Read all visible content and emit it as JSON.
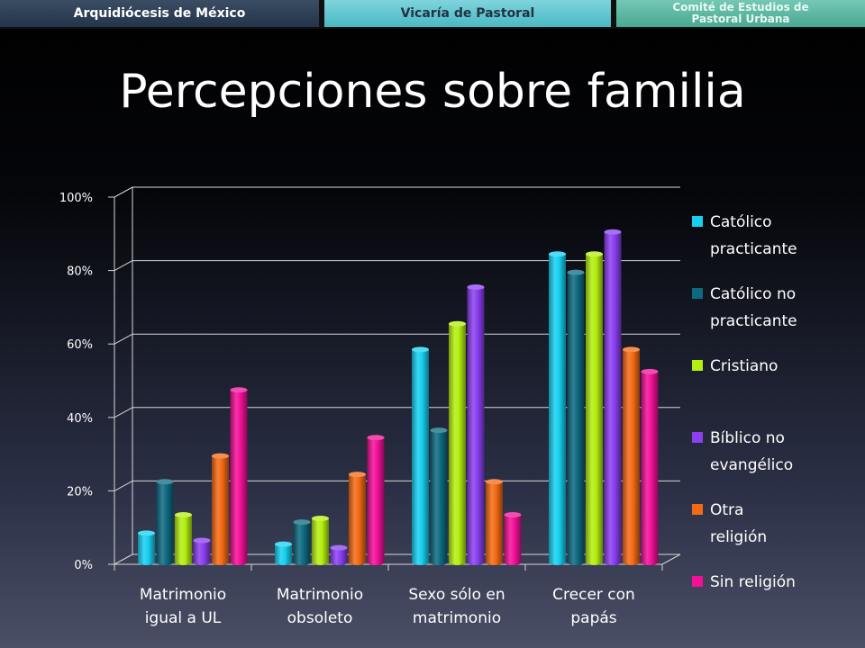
{
  "header": {
    "tab1": "Arquidiócesis de México",
    "tab2": "Vicaría de Pastoral",
    "tab3_line1": "Comité de Estudios de",
    "tab3_line2": "Pastoral Urbana"
  },
  "slide": {
    "title": "Percepciones sobre familia"
  },
  "chart_data": {
    "type": "bar",
    "categories": [
      [
        "Matrimonio",
        "igual a UL"
      ],
      [
        "Matrimonio",
        "obsoleto"
      ],
      [
        "Sexo sólo en",
        "matrimonio"
      ],
      [
        "Crecer con",
        "papás"
      ]
    ],
    "y_ticks": [
      "0%",
      "20%",
      "40%",
      "60%",
      "80%",
      "100%"
    ],
    "ylim": [
      0,
      100
    ],
    "grid": true,
    "legend_position": "right",
    "series": [
      {
        "name": "Católico practicante",
        "legend_lines": [
          "Católico",
          "practicante"
        ],
        "color": "#17d0f0",
        "values": [
          8,
          5,
          58,
          84
        ]
      },
      {
        "name": "Católico no practicante",
        "legend_lines": [
          "Católico no",
          "practicante"
        ],
        "color": "#0e6a80",
        "values": [
          22,
          11,
          36,
          79
        ]
      },
      {
        "name": "Cristiano",
        "legend_lines": [
          "Cristiano"
        ],
        "color": "#b4ef10",
        "values": [
          13,
          12,
          65,
          84
        ]
      },
      {
        "name": "Bíblico no evangélico",
        "legend_lines": [
          "Bíblico no",
          "evangélico"
        ],
        "color": "#8a3ff0",
        "values": [
          6,
          4,
          75,
          90
        ]
      },
      {
        "name": "Otra religión",
        "legend_lines": [
          "Otra",
          "religión"
        ],
        "color": "#f46a14",
        "values": [
          29,
          24,
          22,
          58
        ]
      },
      {
        "name": "Sin religión",
        "legend_lines": [
          "Sin religión"
        ],
        "color": "#f21098",
        "values": [
          47,
          34,
          13,
          52
        ]
      }
    ]
  }
}
